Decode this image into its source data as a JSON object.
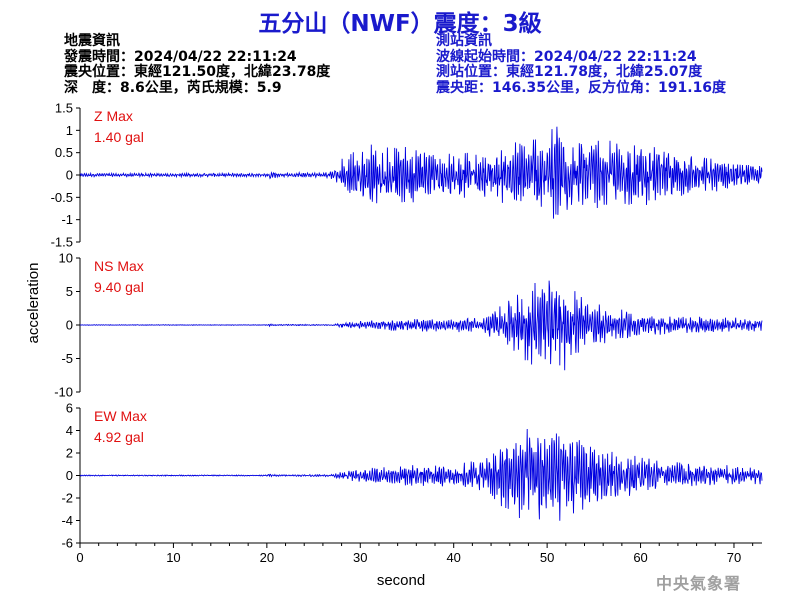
{
  "title": "五分山（NWF）震度：3級",
  "earthquake_info": {
    "heading": "地震資訊",
    "origin_time": "發震時間：2024/04/22 22:11:24",
    "epicenter": "震央位置：東經121.50度，北緯23.78度",
    "depth_magnitude": "深　度：8.6公里，芮氏規模：5.9"
  },
  "station_info": {
    "heading": "測站資訊",
    "waveform_start": "波線起始時間：2024/04/22 22:11:24",
    "station_location": "測站位置：東經121.78度，北緯25.07度",
    "distance_azimuth": "震央距：146.35公里，反方位角：191.16度"
  },
  "credit": "中央氣象署",
  "chart_data": {
    "type": "line",
    "xlabel": "second",
    "ylabel": "acceleration",
    "xlim": [
      0,
      73
    ],
    "xticks": [
      0,
      10,
      20,
      30,
      40,
      50,
      60,
      70
    ],
    "line_color": "#0000e0",
    "max_label_color": "#e01010",
    "panels": [
      {
        "component": "Z",
        "max_title": "Z Max",
        "max_value": "1.40 gal",
        "ylim": [
          -1.5,
          1.5
        ],
        "yticks": [
          1.5,
          1,
          0.5,
          0,
          -0.5,
          -1,
          -1.5
        ],
        "envelope": [
          [
            0,
            0.04
          ],
          [
            20,
            0.04
          ],
          [
            20.3,
            0.1
          ],
          [
            21,
            0.06
          ],
          [
            26,
            0.05
          ],
          [
            27.5,
            0.2
          ],
          [
            28.5,
            0.55
          ],
          [
            30,
            0.7
          ],
          [
            33,
            0.7
          ],
          [
            36,
            0.65
          ],
          [
            40,
            0.55
          ],
          [
            44,
            0.55
          ],
          [
            47,
            0.8
          ],
          [
            50,
            1.1
          ],
          [
            51,
            1.4
          ],
          [
            52,
            1.0
          ],
          [
            55,
            0.8
          ],
          [
            60,
            0.7
          ],
          [
            65,
            0.5
          ],
          [
            70,
            0.3
          ],
          [
            73,
            0.2
          ]
        ]
      },
      {
        "component": "NS",
        "max_title": "NS Max",
        "max_value": "9.40 gal",
        "ylim": [
          -10,
          10
        ],
        "yticks": [
          10,
          5,
          0,
          -5,
          -10
        ],
        "envelope": [
          [
            0,
            0.05
          ],
          [
            20,
            0.05
          ],
          [
            20.3,
            0.2
          ],
          [
            21,
            0.1
          ],
          [
            27,
            0.1
          ],
          [
            28,
            0.4
          ],
          [
            32,
            0.8
          ],
          [
            36,
            1.0
          ],
          [
            40,
            1.0
          ],
          [
            43,
            1.5
          ],
          [
            45,
            3.0
          ],
          [
            47,
            5.0
          ],
          [
            49,
            7.0
          ],
          [
            50,
            8.0
          ],
          [
            51,
            9.4
          ],
          [
            52,
            6.5
          ],
          [
            54,
            4.0
          ],
          [
            57,
            2.5
          ],
          [
            62,
            1.5
          ],
          [
            67,
            1.2
          ],
          [
            73,
            1.0
          ]
        ]
      },
      {
        "component": "EW",
        "max_title": "EW Max",
        "max_value": "4.92 gal",
        "ylim": [
          -6,
          6
        ],
        "yticks": [
          6,
          4,
          2,
          0,
          -2,
          -4,
          -6
        ],
        "envelope": [
          [
            0,
            0.05
          ],
          [
            20,
            0.05
          ],
          [
            20.3,
            0.15
          ],
          [
            21,
            0.08
          ],
          [
            27,
            0.1
          ],
          [
            28,
            0.4
          ],
          [
            32,
            0.8
          ],
          [
            36,
            1.0
          ],
          [
            40,
            1.0
          ],
          [
            43,
            1.5
          ],
          [
            46,
            3.5
          ],
          [
            48,
            4.5
          ],
          [
            50,
            4.0
          ],
          [
            51,
            4.9
          ],
          [
            52,
            4.0
          ],
          [
            54,
            3.0
          ],
          [
            57,
            2.2
          ],
          [
            62,
            1.5
          ],
          [
            67,
            1.0
          ],
          [
            73,
            0.8
          ]
        ]
      }
    ]
  }
}
